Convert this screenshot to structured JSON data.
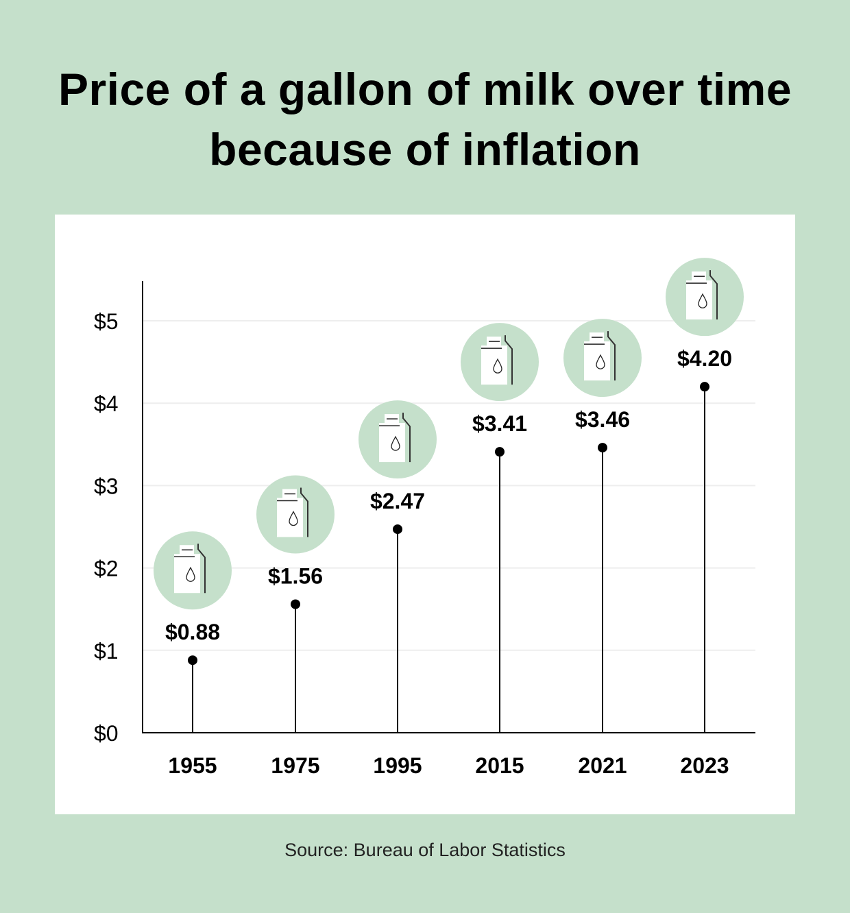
{
  "chart_data": {
    "type": "lollipop",
    "title": "Price of a gallon of milk over time because of inflation",
    "categories": [
      "1955",
      "1975",
      "1995",
      "2015",
      "2021",
      "2023"
    ],
    "values": [
      0.88,
      1.56,
      2.47,
      3.41,
      3.46,
      4.2
    ],
    "data_labels": [
      "$0.88",
      "$1.56",
      "$2.47",
      "$3.41",
      "$3.46",
      "$4.20"
    ],
    "ylim": [
      0,
      5.5
    ],
    "yticks": [
      0,
      1,
      2,
      3,
      4,
      5
    ],
    "ytick_labels": [
      "$0",
      "$1",
      "$2",
      "$3",
      "$4",
      "$5"
    ],
    "grid": true,
    "icon": "milk-carton-icon",
    "colors": {
      "background": "#c5e0cb",
      "icon_circle": "#c5e0cb",
      "grid": "#eeeeee",
      "line": "#000000"
    }
  },
  "source": "Source: Bureau of Labor Statistics"
}
